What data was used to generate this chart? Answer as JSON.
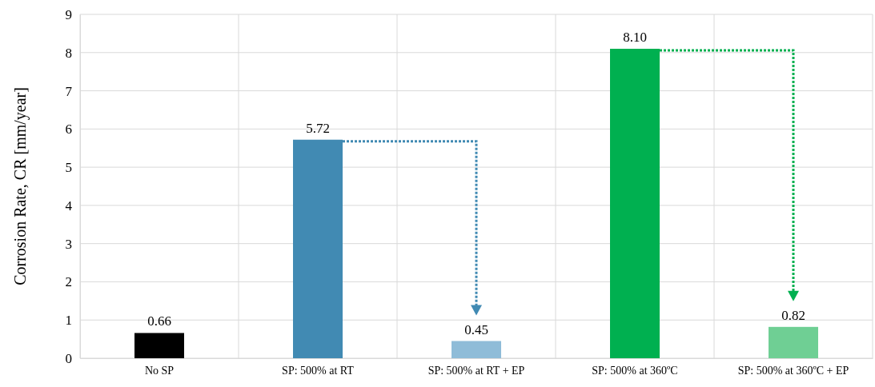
{
  "chart_data": {
    "type": "bar",
    "ylabel": "Corrosion Rate, CR [mm/year]",
    "categories": [
      "No SP",
      "SP: 500% at RT",
      "SP: 500% at RT + EP",
      "SP: 500% at 360ºC",
      "SP: 500% at 360ºC + EP"
    ],
    "values": [
      0.66,
      5.72,
      0.45,
      8.1,
      0.82
    ],
    "value_labels": [
      "0.66",
      "5.72",
      "0.45",
      "8.10",
      "0.82"
    ],
    "colors": [
      "#000000",
      "#418ab3",
      "#8fbcd8",
      "#00b050",
      "#6fcf94"
    ],
    "ylim": [
      0,
      9
    ],
    "yticks": [
      0,
      1,
      2,
      3,
      4,
      5,
      6,
      7,
      8,
      9
    ],
    "grid": true
  }
}
